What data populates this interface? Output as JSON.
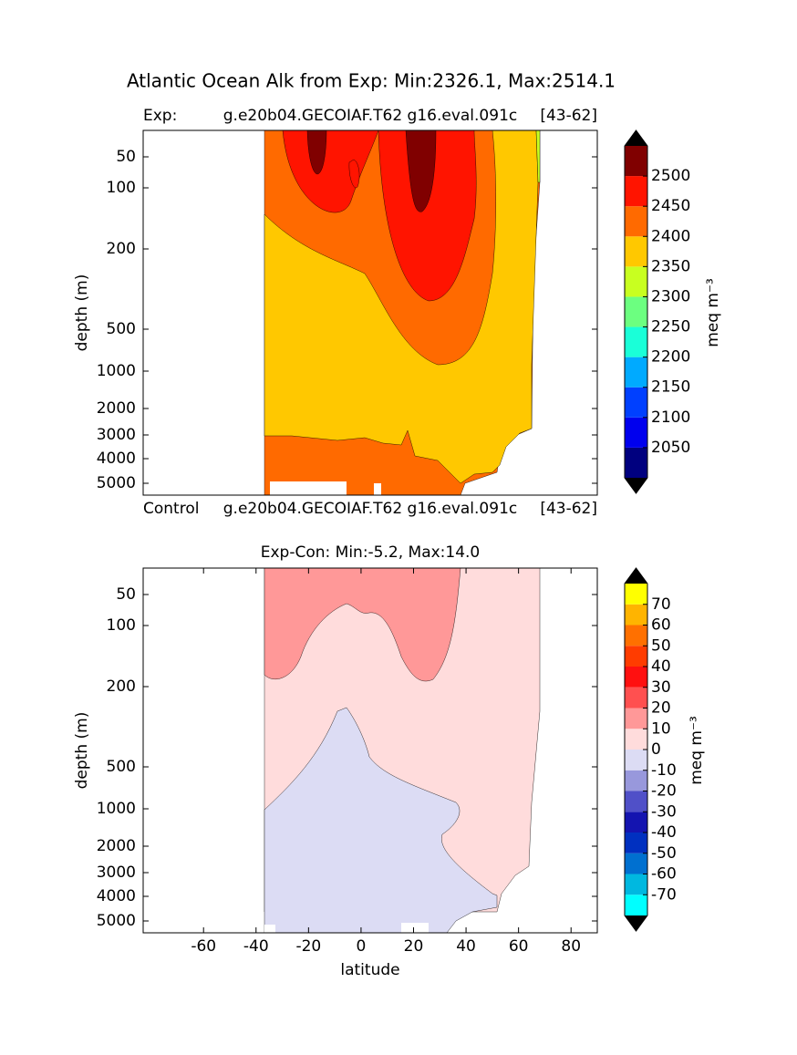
{
  "chart_data": [
    {
      "type": "contour",
      "suptitle": "Atlantic Ocean Alk from Exp: Min:2326.1, Max:2514.1",
      "title_left": "Exp:",
      "title_center": "g.e20b04.GECOIAF.T62 g16.eval.091c",
      "title_right": "[43-62]",
      "ylabel": "depth (m)",
      "xlim": [
        -83,
        90
      ],
      "ylim": [
        8,
        5500
      ],
      "yticks": [
        50,
        100,
        200,
        500,
        1000,
        2000,
        3000,
        4000,
        5000
      ],
      "yinvert": true,
      "colorbar": {
        "label": "meq m⁻³",
        "levels": [
          2000,
          2050,
          2100,
          2150,
          2200,
          2250,
          2300,
          2350,
          2400,
          2450,
          2500,
          2550
        ],
        "colors": [
          "#00007f",
          "#0000ee",
          "#0040ff",
          "#00aaff",
          "#1affd8",
          "#6cff80",
          "#c8ff20",
          "#ffc800",
          "#ff6a00",
          "#ff1400",
          "#800000"
        ],
        "ticks": [
          2050,
          2100,
          2150,
          2200,
          2250,
          2300,
          2350,
          2400,
          2450,
          2500
        ],
        "extend_color": "#000000"
      }
    },
    {
      "type": "contour",
      "title_left": "Control",
      "title_center": "g.e20b04.GECOIAF.T62 g16.eval.091c",
      "title_right": "[43-62]",
      "title": "Exp-Con: Min:-5.2, Max:14.0",
      "xlabel": "latitude",
      "ylabel": "depth (m)",
      "xlim": [
        -83,
        90
      ],
      "xticks": [
        -60,
        -40,
        -20,
        0,
        20,
        40,
        60,
        80
      ],
      "ylim": [
        8,
        5500
      ],
      "yticks": [
        50,
        100,
        200,
        500,
        1000,
        2000,
        3000,
        4000,
        5000
      ],
      "yinvert": true,
      "colorbar": {
        "label": "meq m⁻³",
        "levels": [
          -80,
          -70,
          -60,
          -50,
          -40,
          -30,
          -20,
          -10,
          0,
          10,
          20,
          30,
          40,
          50,
          60,
          70,
          80
        ],
        "colors": [
          "#00ffff",
          "#00b8e0",
          "#0070d0",
          "#0030c0",
          "#1414b0",
          "#5050c8",
          "#9898dc",
          "#dcdcf4",
          "#ffdcdc",
          "#ff9898",
          "#ff5050",
          "#ff1010",
          "#ff3c00",
          "#ff7000",
          "#ffb400",
          "#ffff00"
        ],
        "ticks": [
          -70,
          -60,
          -50,
          -40,
          -30,
          -20,
          -10,
          0,
          10,
          20,
          30,
          40,
          50,
          60,
          70
        ],
        "extend_color": "#000000"
      }
    }
  ]
}
